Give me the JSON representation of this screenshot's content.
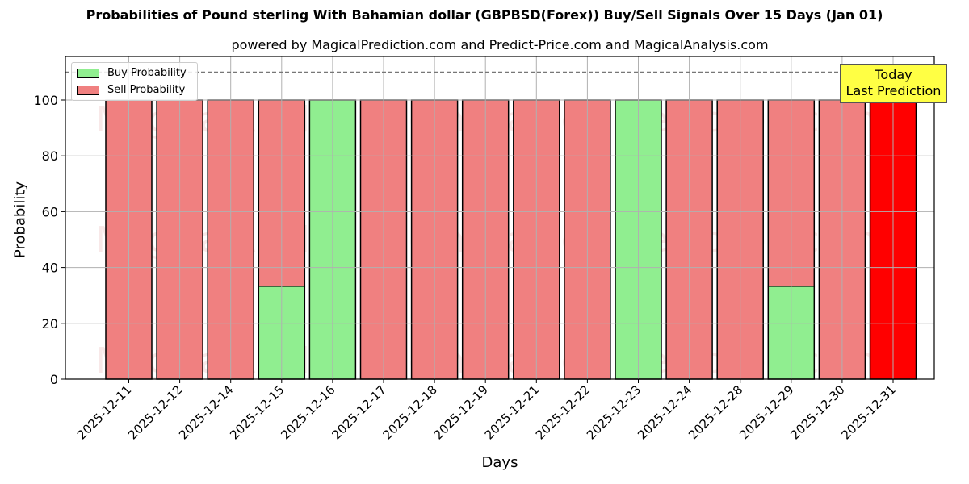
{
  "header": {
    "title": "Probabilities of Pound sterling With Bahamian dollar (GBPBSD(Forex)) Buy/Sell Signals Over 15 Days (Jan 01)",
    "subtitle": "powered by MagicalPrediction.com and Predict-Price.com and MagicalAnalysis.com"
  },
  "legend": {
    "buy_label": "Buy Probability",
    "sell_label": "Sell Probability"
  },
  "annotation": {
    "line1": "Today",
    "line2": "Last Prediction"
  },
  "watermarks": [
    "MagicalAnalysis.com",
    "MagicalPrediction.com"
  ],
  "colors": {
    "buy": "#90ee90",
    "sell": "#f08080",
    "today_sell": "#ff0000",
    "annotation_bg": "#ffff44",
    "grid": "#b0b0b0"
  },
  "chart_data": {
    "type": "bar",
    "stacked": true,
    "title": "Probabilities of Pound sterling With Bahamian dollar (GBPBSD(Forex)) Buy/Sell Signals Over 15 Days (Jan 01)",
    "subtitle": "powered by MagicalPrediction.com and Predict-Price.com and MagicalAnalysis.com",
    "xlabel": "Days",
    "ylabel": "Probability",
    "ylim": [
      0,
      115
    ],
    "yticks": [
      0,
      20,
      40,
      60,
      80,
      100
    ],
    "reference_line": 110,
    "grid": true,
    "legend_position": "upper left",
    "categories": [
      "2025-12-11",
      "2025-12-12",
      "2025-12-14",
      "2025-12-15",
      "2025-12-16",
      "2025-12-17",
      "2025-12-18",
      "2025-12-19",
      "2025-12-21",
      "2025-12-22",
      "2025-12-23",
      "2025-12-24",
      "2025-12-28",
      "2025-12-29",
      "2025-12-30",
      "2025-12-31"
    ],
    "series": [
      {
        "name": "Buy Probability",
        "values": [
          0,
          0,
          0,
          33.3,
          100,
          0,
          0,
          0,
          0,
          0,
          100,
          0,
          0,
          33.3,
          0,
          0
        ]
      },
      {
        "name": "Sell Probability",
        "values": [
          100,
          100,
          100,
          66.7,
          0,
          100,
          100,
          100,
          100,
          100,
          0,
          100,
          100,
          66.7,
          100,
          100
        ]
      }
    ],
    "annotations": [
      {
        "text": "Today\nLast Prediction",
        "x": "2025-12-31"
      }
    ]
  }
}
